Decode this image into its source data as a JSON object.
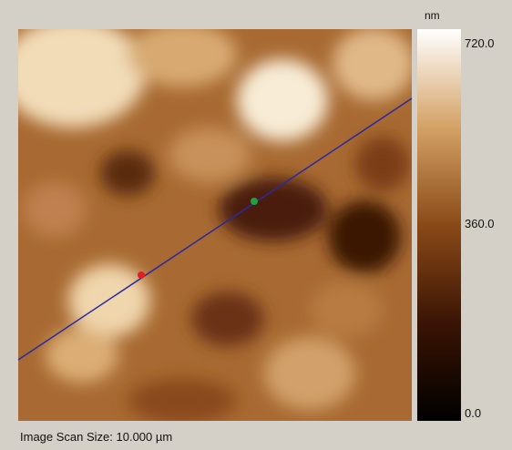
{
  "colorbar": {
    "unit": "nm",
    "labels": [
      "720.0",
      "360.0",
      "0.0"
    ]
  },
  "caption": "Image Scan Size: 10.000 µm"
}
